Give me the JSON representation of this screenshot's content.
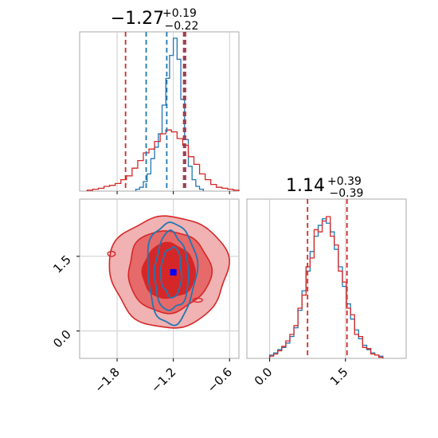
{
  "chart_data": {
    "type": "corner",
    "panels": [
      {
        "id": "hist-x",
        "type": "histogram",
        "title": {
          "main": "−1.27",
          "sup": "+0.19",
          "sub": "−0.22"
        },
        "xlim": [
          -2.2,
          -0.5
        ],
        "xticks": [
          -1.8,
          -1.2,
          -0.6
        ],
        "grid": true,
        "series": [
          {
            "color": "#1f77b4",
            "bins_x": [
              -1.6,
              -1.56,
              -1.52,
              -1.48,
              -1.44,
              -1.4,
              -1.36,
              -1.32,
              -1.28,
              -1.24,
              -1.2,
              -1.16,
              -1.12,
              -1.08,
              -1.04,
              -1.0,
              -0.96,
              -0.92
            ],
            "values": [
              2,
              4,
              10,
              18,
              34,
              46,
              60,
              90,
              118,
              142,
              160,
              138,
              96,
              54,
              26,
              12,
              5,
              2
            ],
            "quantile_lines": [
              -1.49,
              -1.27,
              -1.08
            ]
          },
          {
            "color": "#d62728",
            "bins_x": [
              -2.12,
              -2.06,
              -2.0,
              -1.94,
              -1.88,
              -1.82,
              -1.76,
              -1.7,
              -1.64,
              -1.58,
              -1.52,
              -1.46,
              -1.4,
              -1.34,
              -1.28,
              -1.22,
              -1.16,
              -1.1,
              -1.04,
              -0.98,
              -0.92,
              -0.86,
              -0.8,
              -0.74,
              -0.68,
              -0.62,
              -0.56
            ],
            "values": [
              1,
              2,
              3,
              5,
              6,
              8,
              12,
              16,
              24,
              32,
              40,
              44,
              52,
              60,
              64,
              62,
              55,
              48,
              36,
              28,
              18,
              12,
              7,
              4,
              3,
              2,
              1
            ],
            "quantile_lines": [
              -1.71,
              -1.09,
              -1.07
            ]
          }
        ]
      },
      {
        "id": "hist-y",
        "type": "histogram",
        "title": {
          "main": "1.14",
          "sup": "+0.39",
          "sub": "−0.39"
        },
        "xlim": [
          -0.45,
          2.7
        ],
        "xticks": [
          0.0,
          1.5
        ],
        "grid": true,
        "series": [
          {
            "color": "#1f77b4",
            "bins_x": [
              0.0,
              0.08,
              0.16,
              0.24,
              0.32,
              0.4,
              0.48,
              0.56,
              0.64,
              0.72,
              0.8,
              0.88,
              0.96,
              1.04,
              1.12,
              1.2,
              1.28,
              1.36,
              1.44,
              1.52,
              1.6,
              1.68,
              1.76,
              1.84,
              1.92,
              2.0,
              2.08,
              2.16
            ],
            "values": [
              3,
              5,
              8,
              10,
              14,
              20,
              28,
              44,
              62,
              80,
              98,
              112,
              122,
              128,
              124,
              116,
              100,
              84,
              66,
              50,
              36,
              26,
              18,
              12,
              8,
              5,
              3,
              2
            ]
          },
          {
            "color": "#d62728",
            "bins_x": [
              0.0,
              0.08,
              0.16,
              0.24,
              0.32,
              0.4,
              0.48,
              0.56,
              0.64,
              0.72,
              0.8,
              0.88,
              0.96,
              1.04,
              1.12,
              1.2,
              1.28,
              1.36,
              1.44,
              1.52,
              1.6,
              1.68,
              1.76,
              1.84,
              1.92,
              2.0,
              2.08,
              2.16
            ],
            "values": [
              2,
              4,
              7,
              11,
              16,
              22,
              30,
              46,
              58,
              84,
              92,
              118,
              116,
              126,
              130,
              112,
              104,
              80,
              70,
              46,
              40,
              22,
              20,
              10,
              9,
              4,
              3,
              1
            ]
          }
        ],
        "quantile_lines_color": "#d62728",
        "quantile_lines": [
          0.75,
          1.53
        ]
      },
      {
        "id": "scatter-2d",
        "type": "contour",
        "xlim": [
          -2.2,
          -0.5
        ],
        "ylim": [
          -0.55,
          2.65
        ],
        "xticks": [
          -1.8,
          -1.2,
          -0.6
        ],
        "yticks": [
          0.0,
          1.5
        ],
        "grid": true,
        "red": {
          "color": "#d62728",
          "center": [
            -1.25,
            1.2
          ],
          "radii": [
            [
              0.63,
              1.12
            ],
            [
              0.44,
              0.82
            ],
            [
              0.28,
              0.55
            ]
          ]
        },
        "blue": {
          "color": "#1f77b4",
          "center": [
            -1.22,
            1.18
          ],
          "radii": [
            [
              0.26,
              1.02
            ],
            [
              0.18,
              0.78
            ],
            [
              0.11,
              0.5
            ]
          ]
        },
        "markers": [
          {
            "color": "#0000ff",
            "x": -1.2,
            "y": 1.18
          },
          {
            "color": "#d62728",
            "x": -1.29,
            "y": 1.17
          }
        ]
      }
    ]
  }
}
